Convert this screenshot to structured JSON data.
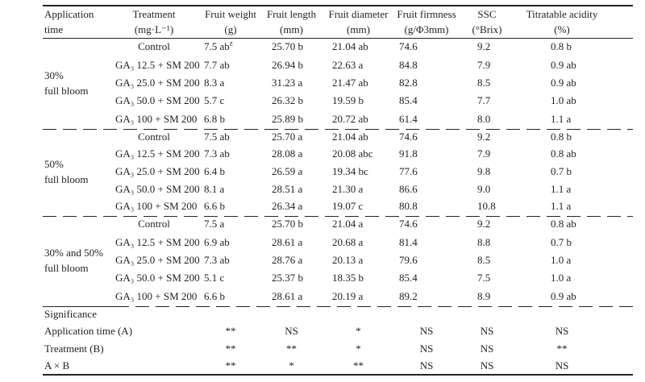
{
  "table": {
    "columns": [
      {
        "line1": "Application",
        "line2": "time"
      },
      {
        "line1": "Treatment",
        "line2": "(mg·L⁻¹)"
      },
      {
        "line1": "Fruit weight",
        "line2": "(g)"
      },
      {
        "line1": "Fruit length",
        "line2": "(mm)"
      },
      {
        "line1": "Fruit diameter",
        "line2": "(mm)"
      },
      {
        "line1": "Fruit firmness",
        "line2": "(g/Φ3mm)"
      },
      {
        "line1": "SSC",
        "line2": "(°Brix)"
      },
      {
        "line1": "Titratable acidity",
        "line2": "(%)"
      }
    ],
    "blocks": [
      {
        "application_time": [
          "30%",
          "full bloom"
        ],
        "rows": [
          {
            "treatment": "Control",
            "fruit_weight": "7.5 ab",
            "fruit_weight_sup": "z",
            "fruit_length": "25.70 b",
            "fruit_diameter": "21.04 ab",
            "fruit_firmness": "74.6",
            "ssc": "9.2",
            "titratable_acidity": "0.8 b"
          },
          {
            "treatment": "GA₃ 12.5 + SM 200",
            "fruit_weight": "7.7 ab",
            "fruit_length": "26.94 b",
            "fruit_diameter": "22.63 a",
            "fruit_firmness": "84.8",
            "ssc": "7.9",
            "titratable_acidity": "0.9 ab"
          },
          {
            "treatment": "GA₃ 25.0 + SM 200",
            "fruit_weight": "8.3 a",
            "fruit_length": "31.23 a",
            "fruit_diameter": "21.47 ab",
            "fruit_firmness": "82.8",
            "ssc": "8.5",
            "titratable_acidity": "0.9 ab"
          },
          {
            "treatment": "GA₃ 50.0 + SM 200",
            "fruit_weight": "5.7 c",
            "fruit_length": "26.32 b",
            "fruit_diameter": "19.59 b",
            "fruit_firmness": "85.4",
            "ssc": "7.7",
            "titratable_acidity": "1.0 ab"
          },
          {
            "treatment": "GA₃ 100 + SM 200",
            "fruit_weight": "6.8 b",
            "fruit_length": "25.89 b",
            "fruit_diameter": "20.72 ab",
            "fruit_firmness": "61.4",
            "ssc": "8.0",
            "titratable_acidity": "1.1 a"
          }
        ]
      },
      {
        "application_time": [
          "50%",
          "full bloom"
        ],
        "rows": [
          {
            "treatment": "Control",
            "fruit_weight": "7.5 ab",
            "fruit_length": "25.70 a",
            "fruit_diameter": "21.04 ab",
            "fruit_firmness": "74.6",
            "ssc": "9.2",
            "titratable_acidity": "0.8 b"
          },
          {
            "treatment": "GA₃ 12.5 + SM 200",
            "fruit_weight": "7.3 ab",
            "fruit_length": "28.08 a",
            "fruit_diameter": "20.08 abc",
            "fruit_firmness": "91.8",
            "ssc": "7.9",
            "titratable_acidity": "0.8 ab"
          },
          {
            "treatment": "GA₃ 25.0 + SM 200",
            "fruit_weight": "6.4 b",
            "fruit_length": "26.59 a",
            "fruit_diameter": "19.34 bc",
            "fruit_firmness": "77.6",
            "ssc": "9.8",
            "titratable_acidity": "0.7 b"
          },
          {
            "treatment": "GA₃ 50.0 + SM 200",
            "fruit_weight": "8.1 a",
            "fruit_length": "28.51 a",
            "fruit_diameter": "21.30 a",
            "fruit_firmness": "86.6",
            "ssc": "9.0",
            "titratable_acidity": "1.1 a"
          },
          {
            "treatment": "GA₃ 100 + SM 200",
            "fruit_weight": "6.6 b",
            "fruit_length": "26.34 a",
            "fruit_diameter": "19.07 c",
            "fruit_firmness": "80.8",
            "ssc": "10.8",
            "titratable_acidity": "1.1 a"
          }
        ]
      },
      {
        "application_time": [
          "30% and 50%",
          "full bloom"
        ],
        "rows": [
          {
            "treatment": "Control",
            "fruit_weight": "7.5 a",
            "fruit_length": "25.70 b",
            "fruit_diameter": "21.04 a",
            "fruit_firmness": "74.6",
            "ssc": "9.2",
            "titratable_acidity": "0.8 ab"
          },
          {
            "treatment": "GA₃ 12.5 + SM 200",
            "fruit_weight": "6.9 ab",
            "fruit_length": "28.61 a",
            "fruit_diameter": "20.68 a",
            "fruit_firmness": "81.4",
            "ssc": "8.8",
            "titratable_acidity": "0.7 b"
          },
          {
            "treatment": "GA₃ 25.0 + SM 200",
            "fruit_weight": "7.3 ab",
            "fruit_length": "28.76 a",
            "fruit_diameter": "20.13 a",
            "fruit_firmness": "79.6",
            "ssc": "8.5",
            "titratable_acidity": "1.0 a"
          },
          {
            "treatment": "GA₃ 50.0 + SM 200",
            "fruit_weight": "5.1 c",
            "fruit_length": "25.37 b",
            "fruit_diameter": "18.35 b",
            "fruit_firmness": "85.4",
            "ssc": "7.5",
            "titratable_acidity": "1.0 a"
          },
          {
            "treatment": "GA₃ 100 + SM 200",
            "fruit_weight": "6.6 b",
            "fruit_length": "28.61 a",
            "fruit_diameter": "20.19 a",
            "fruit_firmness": "89.2",
            "ssc": "8.9",
            "titratable_acidity": "0.9 ab"
          }
        ]
      }
    ],
    "significance": {
      "title": "Significance",
      "rows": [
        {
          "label": "Application time (A)",
          "values": [
            "**",
            "NS",
            "*",
            "NS",
            "NS",
            "NS"
          ]
        },
        {
          "label": "Treatment (B)",
          "values": [
            "**",
            "**",
            "*",
            "NS",
            "NS",
            "**"
          ]
        },
        {
          "label": "A × B",
          "values": [
            "**",
            "*",
            "**",
            "NS",
            "NS",
            "NS"
          ]
        }
      ]
    }
  }
}
